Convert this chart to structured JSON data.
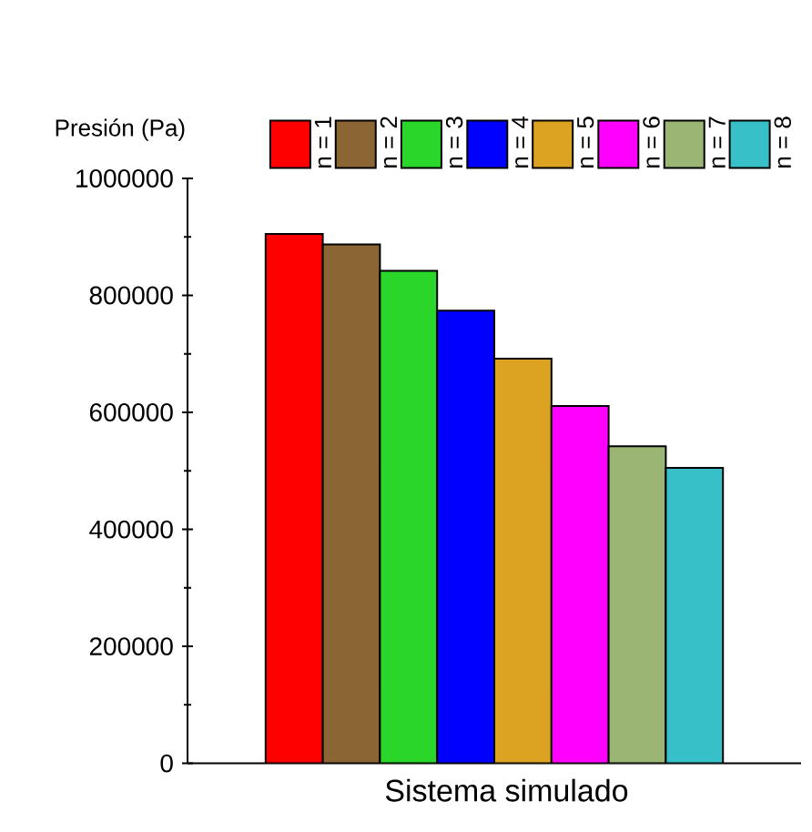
{
  "chart_data": {
    "type": "bar",
    "xlabel": "Sistema simulado",
    "ylabel": "Presión (Pa)",
    "categories": [
      null
    ],
    "series": [
      {
        "name": "n = 1",
        "color": "#ff0000",
        "values": [
          905000
        ]
      },
      {
        "name": "n = 2",
        "color": "#8b6534",
        "values": [
          887000
        ]
      },
      {
        "name": "n = 3",
        "color": "#2ad62a",
        "values": [
          842000
        ]
      },
      {
        "name": "n = 4",
        "color": "#0000ff",
        "values": [
          774000
        ]
      },
      {
        "name": "n = 5",
        "color": "#dca322",
        "values": [
          692000
        ]
      },
      {
        "name": "n = 6",
        "color": "#ff00ff",
        "values": [
          611000
        ]
      },
      {
        "name": "n = 7",
        "color": "#9ab574",
        "values": [
          542000
        ]
      },
      {
        "name": "n = 8",
        "color": "#38c0c8",
        "values": [
          505000
        ]
      }
    ],
    "ylim": [
      0,
      1000000
    ],
    "yticks": [
      0,
      200000,
      400000,
      600000,
      800000,
      1000000
    ],
    "legend": "top",
    "grid": false
  }
}
